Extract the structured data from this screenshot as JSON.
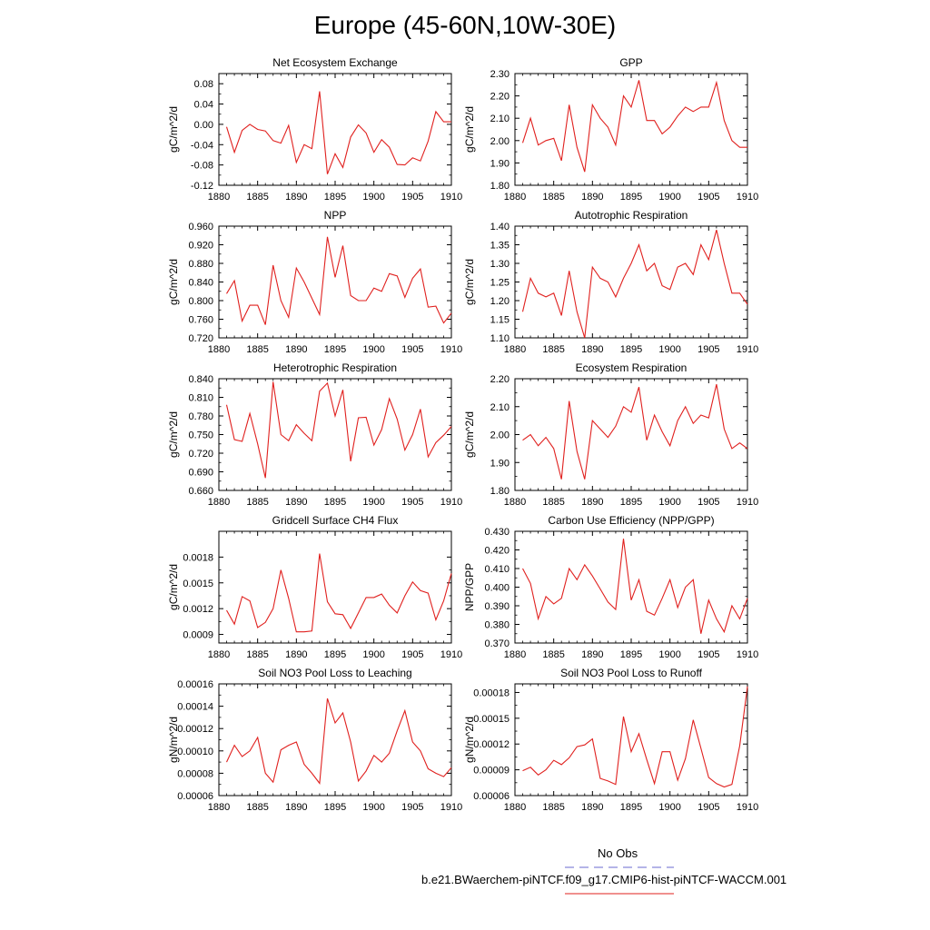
{
  "title": "Europe (45-60N,10W-30E)",
  "legend": {
    "obs_label": "No Obs",
    "obs_color": "#6a6ad0",
    "model_label": "b.e21.BWaerchem-piNTCF.f09_g17.CMIP6-hist-piNTCF-WACCM.001",
    "model_color": "#e0201e"
  },
  "chart_data": [
    {
      "type": "line",
      "title": "Net Ecosystem Exchange",
      "ylabel": "gC/m^2/d",
      "x": [
        1881,
        1882,
        1883,
        1884,
        1885,
        1886,
        1887,
        1888,
        1889,
        1890,
        1891,
        1892,
        1893,
        1894,
        1895,
        1896,
        1897,
        1898,
        1899,
        1900,
        1901,
        1902,
        1903,
        1904,
        1905,
        1906,
        1907,
        1908,
        1909,
        1910
      ],
      "values": [
        -0.005,
        -0.055,
        -0.012,
        0.0,
        -0.01,
        -0.013,
        -0.032,
        -0.037,
        -0.002,
        -0.075,
        -0.04,
        -0.048,
        0.065,
        -0.098,
        -0.058,
        -0.085,
        -0.025,
        -0.001,
        -0.017,
        -0.055,
        -0.03,
        -0.045,
        -0.079,
        -0.08,
        -0.066,
        -0.072,
        -0.033,
        0.025,
        0.005,
        0.005
      ],
      "xlim": [
        1880,
        1910
      ],
      "ylim": [
        -0.12,
        0.1
      ],
      "yticks": [
        -0.12,
        -0.08,
        -0.04,
        0.0,
        0.04,
        0.08
      ],
      "ytick_labels": [
        "-0.12",
        "-0.08",
        "-0.04",
        "0.00",
        "0.04",
        "0.08"
      ],
      "xticks": [
        1880,
        1885,
        1890,
        1895,
        1900,
        1905,
        1910
      ],
      "series_color": "#e0201e"
    },
    {
      "type": "line",
      "title": "GPP",
      "ylabel": "gC/m^2/d",
      "x": [
        1881,
        1882,
        1883,
        1884,
        1885,
        1886,
        1887,
        1888,
        1889,
        1890,
        1891,
        1892,
        1893,
        1894,
        1895,
        1896,
        1897,
        1898,
        1899,
        1900,
        1901,
        1902,
        1903,
        1904,
        1905,
        1906,
        1907,
        1908,
        1909,
        1910
      ],
      "values": [
        1.99,
        2.1,
        1.98,
        2.0,
        2.01,
        1.91,
        2.16,
        1.97,
        1.86,
        2.16,
        2.1,
        2.06,
        1.98,
        2.2,
        2.15,
        2.27,
        2.09,
        2.09,
        2.03,
        2.06,
        2.11,
        2.15,
        2.13,
        2.15,
        2.15,
        2.26,
        2.09,
        2.0,
        1.97,
        1.97
      ],
      "xlim": [
        1880,
        1910
      ],
      "ylim": [
        1.8,
        2.3
      ],
      "yticks": [
        1.8,
        1.9,
        2.0,
        2.1,
        2.2,
        2.3
      ],
      "ytick_labels": [
        "1.80",
        "1.90",
        "2.00",
        "2.10",
        "2.20",
        "2.30"
      ],
      "minor_yticks": [
        1.85,
        1.95,
        2.05,
        2.15,
        2.25
      ],
      "minor_ytick_labels": [
        "",
        "",
        "",
        "",
        ""
      ],
      "xticks": [
        1880,
        1885,
        1890,
        1895,
        1900,
        1905,
        1910
      ],
      "series_color": "#e0201e"
    },
    {
      "type": "line",
      "title": "NPP",
      "ylabel": "gC/m^2/d",
      "x": [
        1881,
        1882,
        1883,
        1884,
        1885,
        1886,
        1887,
        1888,
        1889,
        1890,
        1891,
        1892,
        1893,
        1894,
        1895,
        1896,
        1897,
        1898,
        1899,
        1900,
        1901,
        1902,
        1903,
        1904,
        1905,
        1906,
        1907,
        1908,
        1909,
        1910
      ],
      "values": [
        0.815,
        0.843,
        0.756,
        0.79,
        0.79,
        0.748,
        0.876,
        0.8,
        0.764,
        0.87,
        0.84,
        0.805,
        0.77,
        0.937,
        0.85,
        0.918,
        0.811,
        0.8,
        0.8,
        0.827,
        0.82,
        0.858,
        0.853,
        0.807,
        0.848,
        0.868,
        0.786,
        0.788,
        0.752,
        0.773
      ],
      "xlim": [
        1880,
        1910
      ],
      "ylim": [
        0.72,
        0.96
      ],
      "yticks": [
        0.72,
        0.76,
        0.8,
        0.84,
        0.88,
        0.92,
        0.96
      ],
      "ytick_labels": [
        "0.720",
        "0.760",
        "0.800",
        "0.840",
        "0.880",
        "0.920",
        "0.960"
      ],
      "xticks": [
        1880,
        1885,
        1890,
        1895,
        1900,
        1905,
        1910
      ],
      "series_color": "#e0201e"
    },
    {
      "type": "line",
      "title": "Autotrophic Respiration",
      "ylabel": "gC/m^2/d",
      "x": [
        1881,
        1882,
        1883,
        1884,
        1885,
        1886,
        1887,
        1888,
        1889,
        1890,
        1891,
        1892,
        1893,
        1894,
        1895,
        1896,
        1897,
        1898,
        1899,
        1900,
        1901,
        1902,
        1903,
        1904,
        1905,
        1906,
        1907,
        1908,
        1909,
        1910
      ],
      "values": [
        1.17,
        1.26,
        1.22,
        1.21,
        1.22,
        1.16,
        1.28,
        1.17,
        1.1,
        1.29,
        1.26,
        1.25,
        1.21,
        1.26,
        1.3,
        1.35,
        1.28,
        1.3,
        1.24,
        1.23,
        1.29,
        1.3,
        1.27,
        1.35,
        1.31,
        1.39,
        1.3,
        1.22,
        1.22,
        1.19
      ],
      "xlim": [
        1880,
        1910
      ],
      "ylim": [
        1.1,
        1.4
      ],
      "yticks": [
        1.1,
        1.15,
        1.2,
        1.25,
        1.3,
        1.35,
        1.4
      ],
      "ytick_labels": [
        "1.10",
        "1.15",
        "1.20",
        "1.25",
        "1.30",
        "1.35",
        "1.40"
      ],
      "xticks": [
        1880,
        1885,
        1890,
        1895,
        1900,
        1905,
        1910
      ],
      "series_color": "#e0201e"
    },
    {
      "type": "line",
      "title": "Heterotrophic Respiration",
      "ylabel": "gC/m^2/d",
      "x": [
        1881,
        1882,
        1883,
        1884,
        1885,
        1886,
        1887,
        1888,
        1889,
        1890,
        1891,
        1892,
        1893,
        1894,
        1895,
        1896,
        1897,
        1898,
        1899,
        1900,
        1901,
        1902,
        1903,
        1904,
        1905,
        1906,
        1907,
        1908,
        1909,
        1910
      ],
      "values": [
        0.798,
        0.742,
        0.739,
        0.784,
        0.735,
        0.68,
        0.835,
        0.75,
        0.74,
        0.766,
        0.752,
        0.74,
        0.82,
        0.833,
        0.78,
        0.822,
        0.707,
        0.777,
        0.778,
        0.733,
        0.758,
        0.808,
        0.775,
        0.725,
        0.75,
        0.791,
        0.714,
        0.737,
        0.749,
        0.763
      ],
      "xlim": [
        1880,
        1910
      ],
      "ylim": [
        0.66,
        0.84
      ],
      "yticks": [
        0.66,
        0.69,
        0.72,
        0.75,
        0.78,
        0.81,
        0.84
      ],
      "ytick_labels": [
        "0.660",
        "0.690",
        "0.720",
        "0.750",
        "0.780",
        "0.810",
        "0.840"
      ],
      "xticks": [
        1880,
        1885,
        1890,
        1895,
        1900,
        1905,
        1910
      ],
      "series_color": "#e0201e"
    },
    {
      "type": "line",
      "title": "Ecosystem Respiration",
      "ylabel": "gC/m^2/d",
      "x": [
        1881,
        1882,
        1883,
        1884,
        1885,
        1886,
        1887,
        1888,
        1889,
        1890,
        1891,
        1892,
        1893,
        1894,
        1895,
        1896,
        1897,
        1898,
        1899,
        1900,
        1901,
        1902,
        1903,
        1904,
        1905,
        1906,
        1907,
        1908,
        1909,
        1910
      ],
      "values": [
        1.98,
        2.0,
        1.96,
        1.99,
        1.95,
        1.84,
        2.12,
        1.94,
        1.84,
        2.05,
        2.02,
        1.99,
        2.03,
        2.1,
        2.08,
        2.17,
        1.98,
        2.07,
        2.01,
        1.96,
        2.05,
        2.1,
        2.04,
        2.07,
        2.06,
        2.18,
        2.02,
        1.95,
        1.97,
        1.95
      ],
      "xlim": [
        1880,
        1910
      ],
      "ylim": [
        1.8,
        2.2
      ],
      "yticks": [
        1.8,
        1.9,
        2.0,
        2.1,
        2.2
      ],
      "ytick_labels": [
        "1.80",
        "1.90",
        "2.00",
        "2.10",
        "2.20"
      ],
      "xticks": [
        1880,
        1885,
        1890,
        1895,
        1900,
        1905,
        1910
      ],
      "series_color": "#e0201e"
    },
    {
      "type": "line",
      "title": "Gridcell Surface CH4 Flux",
      "ylabel": "gC/m^2/d",
      "x": [
        1881,
        1882,
        1883,
        1884,
        1885,
        1886,
        1887,
        1888,
        1889,
        1890,
        1891,
        1892,
        1893,
        1894,
        1895,
        1896,
        1897,
        1898,
        1899,
        1900,
        1901,
        1902,
        1903,
        1904,
        1905,
        1906,
        1907,
        1908,
        1909,
        1910
      ],
      "values": [
        0.00118,
        0.00102,
        0.00134,
        0.00129,
        0.00098,
        0.00104,
        0.0012,
        0.00165,
        0.00132,
        0.00093,
        0.00093,
        0.00094,
        0.00184,
        0.00128,
        0.00114,
        0.00113,
        0.00097,
        0.00115,
        0.00133,
        0.00133,
        0.00137,
        0.00124,
        0.00115,
        0.00135,
        0.00151,
        0.00141,
        0.00138,
        0.00107,
        0.00129,
        0.00161
      ],
      "xlim": [
        1880,
        1910
      ],
      "ylim": [
        0.0008,
        0.0021
      ],
      "yticks": [
        0.0009,
        0.0012,
        0.0015,
        0.0018
      ],
      "ytick_labels": [
        "0.0009",
        "0.0012",
        "0.0015",
        "0.0018"
      ],
      "xticks": [
        1880,
        1885,
        1890,
        1895,
        1900,
        1905,
        1910
      ],
      "series_color": "#e0201e"
    },
    {
      "type": "line",
      "title": "Carbon Use Efficiency (NPP/GPP)",
      "ylabel": "NPP/GPP",
      "x": [
        1881,
        1882,
        1883,
        1884,
        1885,
        1886,
        1887,
        1888,
        1889,
        1890,
        1891,
        1892,
        1893,
        1894,
        1895,
        1896,
        1897,
        1898,
        1899,
        1900,
        1901,
        1902,
        1903,
        1904,
        1905,
        1906,
        1907,
        1908,
        1909,
        1910
      ],
      "values": [
        0.41,
        0.402,
        0.383,
        0.395,
        0.391,
        0.394,
        0.41,
        0.404,
        0.412,
        0.406,
        0.399,
        0.392,
        0.388,
        0.426,
        0.393,
        0.404,
        0.387,
        0.385,
        0.394,
        0.404,
        0.389,
        0.4,
        0.404,
        0.375,
        0.393,
        0.383,
        0.376,
        0.39,
        0.383,
        0.394
      ],
      "xlim": [
        1880,
        1910
      ],
      "ylim": [
        0.37,
        0.43
      ],
      "yticks": [
        0.37,
        0.38,
        0.39,
        0.4,
        0.41,
        0.42,
        0.43
      ],
      "ytick_labels": [
        "0.370",
        "0.380",
        "0.390",
        "0.400",
        "0.410",
        "0.420",
        "0.430"
      ],
      "xticks": [
        1880,
        1885,
        1890,
        1895,
        1900,
        1905,
        1910
      ],
      "series_color": "#e0201e"
    },
    {
      "type": "line",
      "title": "Soil NO3 Pool Loss to Leaching",
      "ylabel": "gN/m^2/d",
      "x": [
        1881,
        1882,
        1883,
        1884,
        1885,
        1886,
        1887,
        1888,
        1889,
        1890,
        1891,
        1892,
        1893,
        1894,
        1895,
        1896,
        1897,
        1898,
        1899,
        1900,
        1901,
        1902,
        1903,
        1904,
        1905,
        1906,
        1907,
        1908,
        1909,
        1910
      ],
      "values": [
        9e-05,
        0.000105,
        9.5e-05,
        0.0001,
        0.000112,
        8e-05,
        7.2e-05,
        0.000101,
        0.000105,
        0.000108,
        8.8e-05,
        8e-05,
        7.1e-05,
        0.000147,
        0.000125,
        0.000134,
        0.000108,
        7.3e-05,
        8.2e-05,
        9.6e-05,
        9e-05,
        9.8e-05,
        0.000118,
        0.000136,
        0.000108,
        0.0001,
        8.4e-05,
        8e-05,
        7.7e-05,
        8.5e-05
      ],
      "xlim": [
        1880,
        1910
      ],
      "ylim": [
        6e-05,
        0.00016
      ],
      "yticks": [
        6e-05,
        8e-05,
        0.0001,
        0.00012,
        0.00014,
        0.00016
      ],
      "ytick_labels": [
        "0.00006",
        "0.00008",
        "0.00010",
        "0.00012",
        "0.00014",
        "0.00016"
      ],
      "xticks": [
        1880,
        1885,
        1890,
        1895,
        1900,
        1905,
        1910
      ],
      "series_color": "#e0201e"
    },
    {
      "type": "line",
      "title": "Soil NO3 Pool Loss to Runoff",
      "ylabel": "gN/m^2/d",
      "x": [
        1881,
        1882,
        1883,
        1884,
        1885,
        1886,
        1887,
        1888,
        1889,
        1890,
        1891,
        1892,
        1893,
        1894,
        1895,
        1896,
        1897,
        1898,
        1899,
        1900,
        1901,
        1902,
        1903,
        1904,
        1905,
        1906,
        1907,
        1908,
        1909,
        1910
      ],
      "values": [
        8.9e-05,
        9.3e-05,
        8.4e-05,
        9e-05,
        0.000101,
        9.6e-05,
        0.000104,
        0.000117,
        0.000119,
        0.000126,
        8e-05,
        7.7e-05,
        7.3e-05,
        0.000152,
        0.000111,
        0.000132,
        0.000102,
        7.4e-05,
        0.000111,
        0.000111,
        7.8e-05,
        0.000103,
        0.000148,
        0.000115,
        8.1e-05,
        7.4e-05,
        7e-05,
        7.3e-05,
        0.000118,
        0.000187
      ],
      "xlim": [
        1880,
        1910
      ],
      "ylim": [
        6e-05,
        0.00019
      ],
      "yticks": [
        6e-05,
        9e-05,
        0.00012,
        0.00015,
        0.00018
      ],
      "ytick_labels": [
        "0.00006",
        "0.00009",
        "0.00012",
        "0.00015",
        "0.00018"
      ],
      "xticks": [
        1880,
        1885,
        1890,
        1895,
        1900,
        1905,
        1910
      ],
      "series_color": "#e0201e"
    }
  ]
}
